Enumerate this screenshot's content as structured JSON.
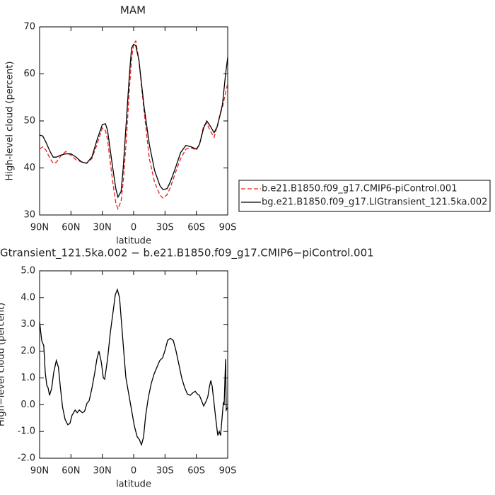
{
  "chart_data": [
    {
      "type": "line",
      "title": "MAM",
      "xlabel": "latitude",
      "ylabel": "High-level cloud (percent)",
      "x": [
        90,
        87,
        84,
        80,
        77,
        74,
        70,
        65,
        60,
        55,
        50,
        45,
        40,
        35,
        30,
        27,
        25,
        20,
        17,
        15,
        12,
        10,
        7,
        4,
        2,
        0,
        -2,
        -5,
        -10,
        -15,
        -20,
        -25,
        -28,
        -32,
        -35,
        -40,
        -45,
        -50,
        -55,
        -60,
        -63,
        -67,
        -70,
        -73,
        -77,
        -80,
        -85,
        -88,
        -90
      ],
      "series": [
        {
          "name": "b.e21.B1850.f09_g17.CMIP6-piControl.001",
          "color": "#e8201e",
          "dash": true,
          "values": [
            44,
            44.5,
            43.8,
            42,
            41,
            41.2,
            42.5,
            43.5,
            42.7,
            41.7,
            41.3,
            41,
            42,
            45,
            48.5,
            48,
            46,
            37,
            32.5,
            31.3,
            33,
            37,
            46,
            57,
            63,
            66.5,
            67,
            63,
            52,
            42,
            37,
            34.3,
            33.6,
            34.3,
            35.8,
            39,
            42,
            44,
            44.3,
            43.8,
            45,
            49,
            49.5,
            48,
            46.5,
            49,
            53,
            56,
            58
          ]
        },
        {
          "name": "bg.e21.B1850.f09_g17.LIGtransient_121.5ka.002",
          "color": "#000000",
          "dash": false,
          "values": [
            47,
            46.8,
            45.5,
            43.5,
            42.3,
            42.3,
            42.7,
            43,
            43,
            42.3,
            41.3,
            41,
            42.3,
            46,
            49.2,
            49.4,
            48,
            40,
            35.5,
            33.8,
            35,
            40,
            50,
            60,
            65.5,
            66.3,
            66,
            63,
            53,
            45,
            39.5,
            36.3,
            35.4,
            35.6,
            37,
            40,
            43.3,
            44.8,
            44.5,
            44,
            45,
            48.5,
            50,
            49,
            47.5,
            48.8,
            53.5,
            60,
            63.5
          ]
        }
      ],
      "xlim": [
        90,
        -90
      ],
      "xticks": [
        {
          "value": 90,
          "label": "90N"
        },
        {
          "value": 60,
          "label": "60N"
        },
        {
          "value": 30,
          "label": "30N"
        },
        0,
        {
          "value": -30,
          "label": "30S"
        },
        {
          "value": -60,
          "label": "60S"
        },
        {
          "value": -90,
          "label": "90S"
        }
      ],
      "ylim": [
        30,
        70
      ],
      "yticks": [
        30,
        40,
        50,
        60,
        70
      ],
      "legend": "right"
    },
    {
      "type": "line",
      "title": "Gtransient_121.5ka.002 − b.e21.B1850.f09_g17.CMIP6−piControl.001",
      "xlabel": "latitude",
      "ylabel": "High−level cloud (percent)",
      "x": [
        90,
        88,
        86,
        84.6,
        83,
        82,
        80.5,
        78.5,
        76.5,
        74,
        72,
        70,
        68,
        65.6,
        63,
        61,
        59,
        56,
        54,
        52,
        49,
        47,
        44.7,
        42.6,
        40,
        37.2,
        35.2,
        33.2,
        31,
        29,
        27.7,
        25,
        22.3,
        19.6,
        17.6,
        15.6,
        13.5,
        11.5,
        9.5,
        7.4,
        4.7,
        2,
        -0.7,
        -3.4,
        -5.4,
        -7.5,
        -9.5,
        -11.5,
        -14.2,
        -16.9,
        -19.6,
        -22.3,
        -25,
        -27.7,
        -29.8,
        -32.5,
        -35.2,
        -37.9,
        -40.6,
        -43.3,
        -46,
        -48.7,
        -51.4,
        -54.1,
        -56.8,
        -58.9,
        -60.9,
        -62.9,
        -65,
        -67,
        -69,
        -71,
        -72.4,
        -73.8,
        -75.1,
        -77.1,
        -78.5,
        -80.5,
        -81.9,
        -83.2,
        -84.6,
        -85.9,
        -86.6,
        -88,
        -88.6,
        -90
      ],
      "values": [
        3.1,
        2.4,
        2.2,
        1.2,
        0.7,
        0.65,
        0.35,
        0.6,
        1.2,
        1.65,
        1.4,
        0.6,
        -0.1,
        -0.55,
        -0.75,
        -0.7,
        -0.4,
        -0.2,
        -0.3,
        -0.2,
        -0.3,
        -0.25,
        0.05,
        0.15,
        0.6,
        1.2,
        1.7,
        2.0,
        1.6,
        1.0,
        0.95,
        1.7,
        2.7,
        3.5,
        4.1,
        4.3,
        4.0,
        3.0,
        2.0,
        1.0,
        0.4,
        -0.2,
        -0.8,
        -1.2,
        -1.3,
        -1.5,
        -1.2,
        -0.4,
        0.3,
        0.8,
        1.15,
        1.4,
        1.65,
        1.75,
        2.0,
        2.4,
        2.48,
        2.4,
        2.0,
        1.5,
        1.0,
        0.65,
        0.4,
        0.35,
        0.45,
        0.5,
        0.4,
        0.35,
        0.15,
        -0.05,
        0.1,
        0.3,
        0.65,
        0.9,
        0.7,
        0.0,
        -0.5,
        -1.15,
        -1.0,
        -1.15,
        -0.5,
        0.1,
        0.0,
        1.7,
        -0.2,
        -0.1
      ],
      "color": "#000000",
      "xlim": [
        90,
        -90
      ],
      "xticks": [
        {
          "value": 90,
          "label": "90N"
        },
        {
          "value": 60,
          "label": "60N"
        },
        {
          "value": 30,
          "label": "30N"
        },
        0,
        {
          "value": -30,
          "label": "30S"
        },
        {
          "value": -60,
          "label": "60S"
        },
        {
          "value": -90,
          "label": "90S"
        }
      ],
      "ylim": [
        -2,
        5
      ],
      "yticks": [
        {
          "value": -2,
          "label": "-2.0"
        },
        {
          "value": -1,
          "label": "-1.0"
        },
        {
          "value": 0,
          "label": "0.0"
        },
        {
          "value": 1,
          "label": "1.0"
        },
        {
          "value": 2,
          "label": "2.0"
        },
        {
          "value": 3,
          "label": "3.0"
        },
        {
          "value": 4,
          "label": "4.0"
        },
        {
          "value": 5,
          "label": "5.0"
        }
      ]
    }
  ]
}
